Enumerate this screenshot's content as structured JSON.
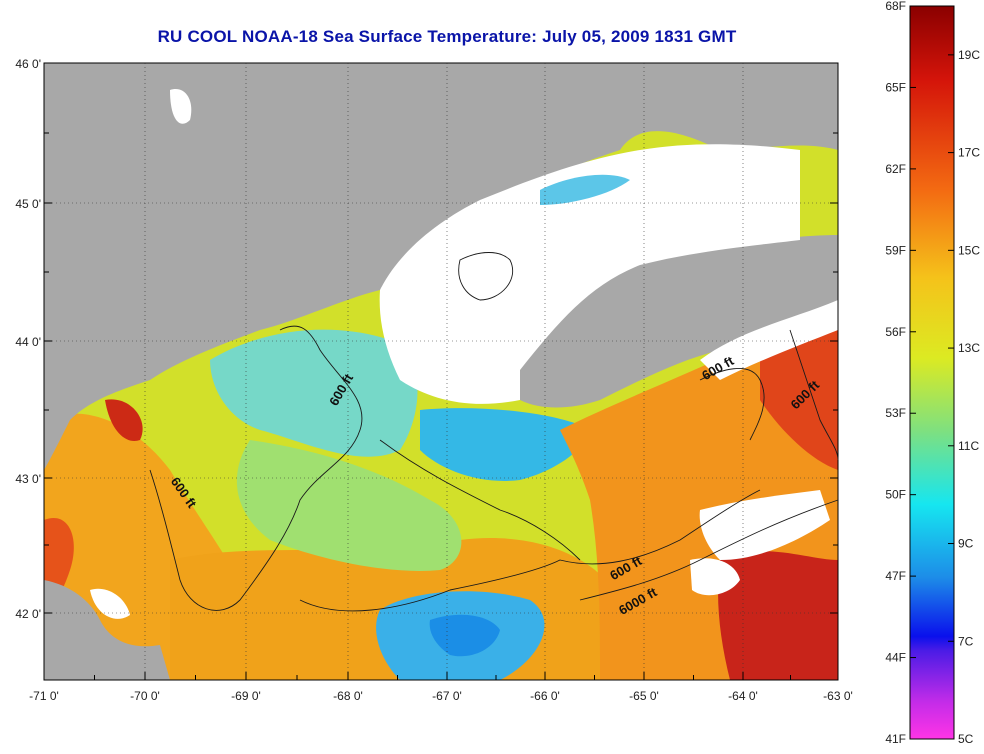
{
  "title": "RU COOL  NOAA-18  Sea Surface Temperature:  July 05, 2009 1831 GMT",
  "map": {
    "lon_ticks": [
      "-71 0'",
      "-70 0'",
      "-69 0'",
      "-68 0'",
      "-67 0'",
      "-66 0'",
      "-65 0'",
      "-64 0'",
      "-63 0'"
    ],
    "lat_ticks": [
      "46 0'",
      "45 0'",
      "44 0'",
      "43 0'",
      "42 0'"
    ],
    "contour_labels": [
      "600 ft",
      "600 ft",
      "600 ft",
      "600 ft",
      "6000 ft",
      "600 ft"
    ],
    "colors": {
      "land": "#a8a8a8",
      "cloud": "#ffffff",
      "cold": "#1e9be8",
      "mid": "#b7e64b",
      "warm": "#f0a018",
      "hot": "#d11d10"
    }
  },
  "colorbar": {
    "f_labels": [
      "68F",
      "65F",
      "62F",
      "59F",
      "56F",
      "53F",
      "50F",
      "47F",
      "44F",
      "41F"
    ],
    "c_labels": [
      "19C",
      "17C",
      "15C",
      "13C",
      "11C",
      "9C",
      "7C",
      "5C"
    ],
    "range_f": [
      41,
      68
    ]
  }
}
